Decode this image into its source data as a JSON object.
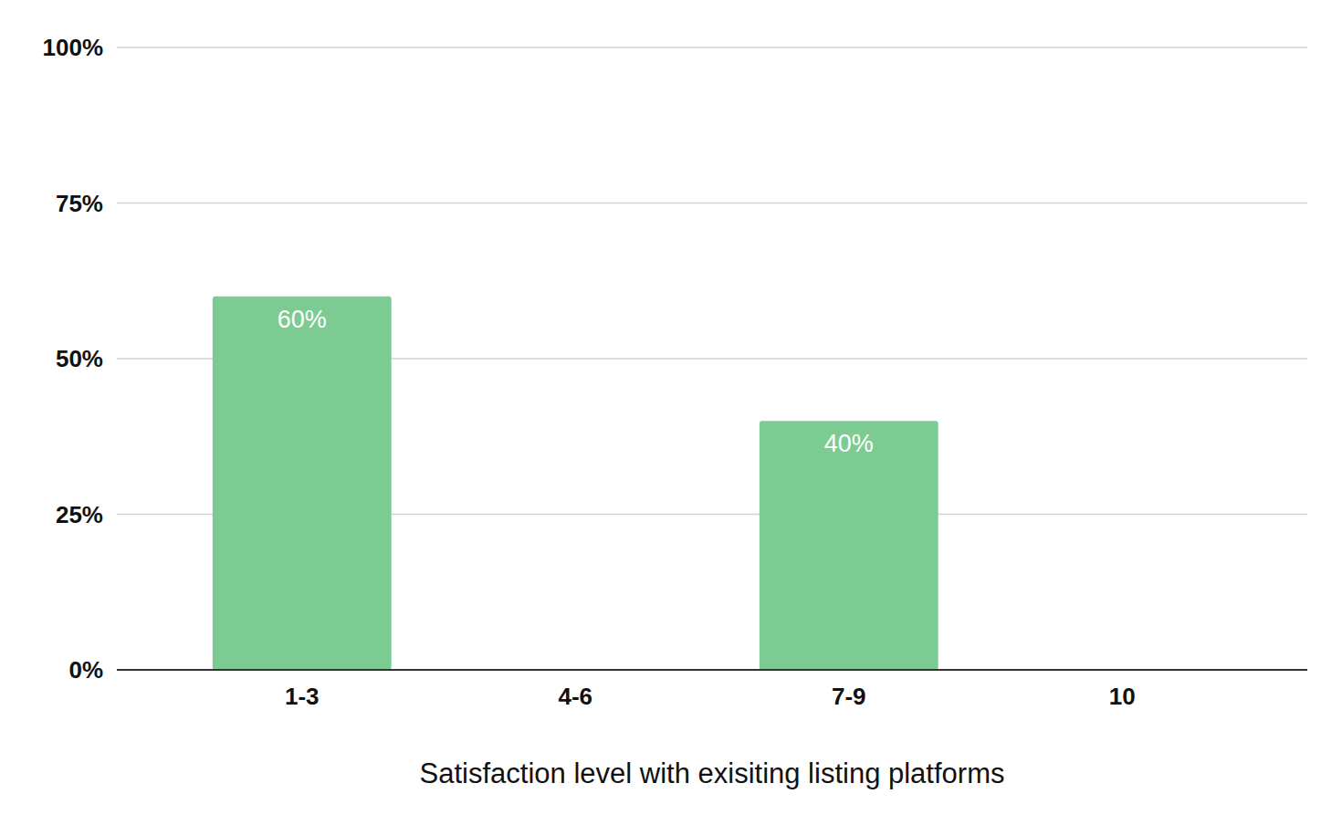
{
  "chart_data": {
    "type": "bar",
    "x_label": "Satisfaction level with exisiting listing platforms",
    "categories": [
      "1-3",
      "4-6",
      "7-9",
      "10"
    ],
    "values": [
      60,
      0,
      40,
      0
    ],
    "value_labels": [
      "60%",
      null,
      "40%",
      null
    ],
    "data_labels": true,
    "color": "#7bcb92",
    "ylim": [
      0,
      100
    ],
    "yticks": [
      {
        "value": 0,
        "label": "0%"
      },
      {
        "value": 25,
        "label": "25%"
      },
      {
        "value": 50,
        "label": "50%"
      },
      {
        "value": 75,
        "label": "75%"
      },
      {
        "value": 100,
        "label": "100%"
      }
    ],
    "grid": true
  }
}
